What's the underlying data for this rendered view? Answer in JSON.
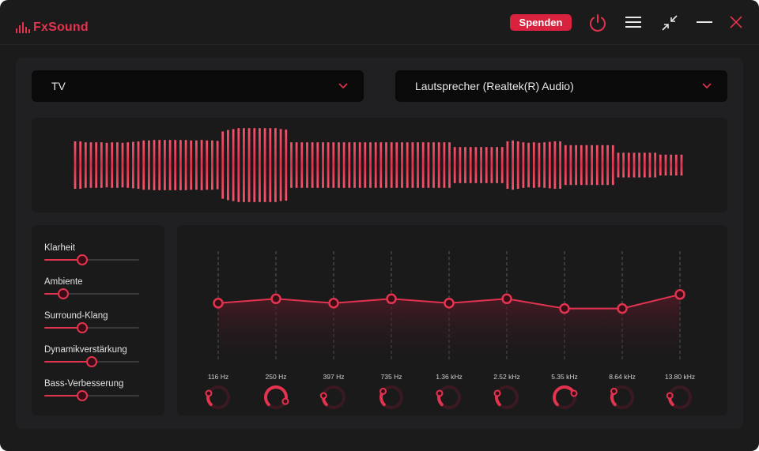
{
  "app": {
    "logo_text": "FxSound"
  },
  "titlebar": {
    "donate_label": "Spenden",
    "icons": [
      "power-icon",
      "menu-icon",
      "minimize-view-icon",
      "minimize-icon",
      "close-icon"
    ]
  },
  "preset": {
    "selected": "TV"
  },
  "output": {
    "selected": "Lautsprecher (Realtek(R) Audio)"
  },
  "effects": [
    {
      "label": "Klarheit",
      "value": 0.4
    },
    {
      "label": "Ambiente",
      "value": 0.2
    },
    {
      "label": "Surround-Klang",
      "value": 0.4
    },
    {
      "label": "Dynamikverstärkung",
      "value": 0.5
    },
    {
      "label": "Bass-Verbesserung",
      "value": 0.4
    }
  ],
  "equalizer": {
    "bands": [
      {
        "freq": "116 Hz",
        "gain": 0.52,
        "knob": 0.25
      },
      {
        "freq": "250 Hz",
        "gain": 0.56,
        "knob": 0.92
      },
      {
        "freq": "397 Hz",
        "gain": 0.52,
        "knob": 0.2
      },
      {
        "freq": "735 Hz",
        "gain": 0.56,
        "knob": 0.3
      },
      {
        "freq": "1.36 kHz",
        "gain": 0.52,
        "knob": 0.25
      },
      {
        "freq": "2.52 kHz",
        "gain": 0.56,
        "knob": 0.25
      },
      {
        "freq": "5.35 kHz",
        "gain": 0.47,
        "knob": 0.75
      },
      {
        "freq": "8.64 kHz",
        "gain": 0.47,
        "knob": 0.3
      },
      {
        "freq": "13.80 kHz",
        "gain": 0.6,
        "knob": 0.2
      }
    ]
  },
  "visualizer": {
    "levels": [
      0.5,
      0.5,
      0.48,
      0.48,
      0.48,
      0.48,
      0.47,
      0.48,
      0.48,
      0.47,
      0.48,
      0.49,
      0.5,
      0.52,
      0.52,
      0.53,
      0.53,
      0.53,
      0.53,
      0.53,
      0.53,
      0.53,
      0.52,
      0.52,
      0.53,
      0.52,
      0.52,
      0.51,
      0.71,
      0.74,
      0.76,
      0.78,
      0.78,
      0.78,
      0.78,
      0.78,
      0.78,
      0.78,
      0.78,
      0.76,
      0.75,
      0.48,
      0.48,
      0.48,
      0.48,
      0.48,
      0.48,
      0.48,
      0.48,
      0.48,
      0.48,
      0.48,
      0.48,
      0.48,
      0.48,
      0.48,
      0.48,
      0.48,
      0.48,
      0.48,
      0.48,
      0.48,
      0.48,
      0.48,
      0.48,
      0.48,
      0.48,
      0.48,
      0.48,
      0.48,
      0.48,
      0.48,
      0.38,
      0.38,
      0.38,
      0.38,
      0.38,
      0.38,
      0.38,
      0.38,
      0.38,
      0.38,
      0.5,
      0.52,
      0.5,
      0.48,
      0.47,
      0.48,
      0.47,
      0.48,
      0.49,
      0.5,
      0.5,
      0.42,
      0.42,
      0.42,
      0.42,
      0.42,
      0.42,
      0.42,
      0.42,
      0.42,
      0.42,
      0.26,
      0.26,
      0.26,
      0.26,
      0.26,
      0.26,
      0.26,
      0.26,
      0.22,
      0.22,
      0.22,
      0.22,
      0.22
    ]
  },
  "colors": {
    "accent": "#e2334f",
    "background": "#1b1b1c",
    "panel": "#202022",
    "dropdown": "#0a0a0b"
  }
}
